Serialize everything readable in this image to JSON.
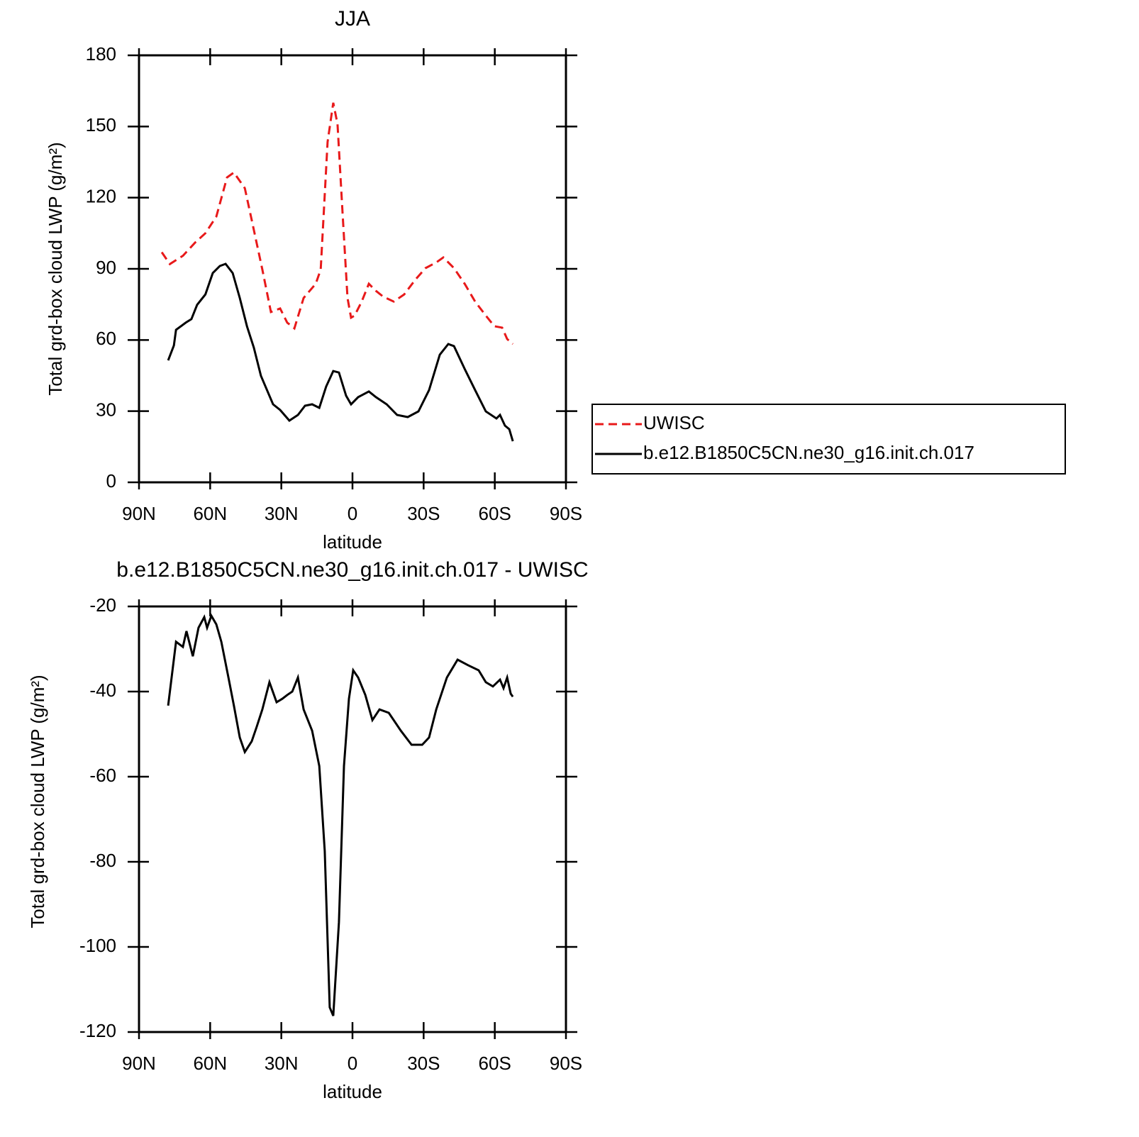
{
  "chart_data": [
    {
      "type": "line",
      "title": "JJA",
      "xlabel": "latitude",
      "ylabel": "Total grd-box cloud LWP (g/m²)",
      "xlim": [
        90,
        -90
      ],
      "xticks": [
        {
          "value": 90,
          "label": "90N"
        },
        {
          "value": 60,
          "label": "60N"
        },
        {
          "value": 30,
          "label": "30N"
        },
        0,
        {
          "value": -30,
          "label": "30S"
        },
        {
          "value": -60,
          "label": "60S"
        },
        {
          "value": -90,
          "label": "90S"
        }
      ],
      "ylim": [
        0,
        180
      ],
      "yticks": [
        0,
        30,
        60,
        90,
        120,
        150,
        180
      ],
      "legend": "right",
      "series": [
        {
          "name": "UWISC",
          "color": "#e8191a",
          "dashed": true,
          "x": [
            80.4,
            77,
            71.5,
            66.4,
            62,
            57.4,
            52.9,
            50,
            45.4,
            42.5,
            38,
            34.4,
            30.5,
            27.5,
            24.5,
            20.6,
            15.5,
            13.4,
            10.5,
            8.1,
            6.3,
            4.2,
            2.1,
            0.6,
            -0.9,
            -3.9,
            -6.9,
            -9.9,
            -12.9,
            -17.4,
            -21.8,
            -26.3,
            -30.8,
            -35.3,
            -38.3,
            -42.8,
            -47.3,
            -51.7,
            -56.2,
            -59.8,
            -63.1,
            -65.2,
            -67.6
          ],
          "values": [
            97,
            92,
            95.5,
            101,
            105,
            112,
            128.5,
            130.6,
            124,
            110.6,
            89.7,
            71.8,
            73.3,
            67.3,
            64.9,
            77.7,
            83.7,
            89.7,
            143.5,
            160,
            151,
            113.6,
            77.7,
            69.4,
            70.3,
            76.2,
            83.7,
            80.7,
            78.3,
            76.2,
            79.2,
            85.2,
            90.3,
            92.7,
            94.8,
            90.3,
            83.7,
            76.2,
            70.3,
            65.8,
            65.2,
            60.4,
            58.3
          ]
        },
        {
          "name": "b.e12.B1850C5CN.ne30_g16.init.ch.017",
          "color": "#000000",
          "dashed": false,
          "x": [
            77.7,
            75.3,
            74.4,
            70.3,
            67.9,
            65.5,
            62,
            58.9,
            55.9,
            53.5,
            50.5,
            47.5,
            44.5,
            41.6,
            38.6,
            33.5,
            30.5,
            26.6,
            23,
            20,
            17,
            14,
            11.1,
            8.1,
            5.7,
            2.7,
            0.6,
            -2.4,
            -6.9,
            -9.9,
            -14.4,
            -18.8,
            -23.3,
            -27.8,
            -32.3,
            -36.8,
            -40.4,
            -42.8,
            -47.3,
            -51.7,
            -56.2,
            -60.7,
            -62.2,
            -64.3,
            -66.1,
            -67.6
          ],
          "values": [
            51.4,
            57.7,
            64.3,
            67.3,
            68.8,
            74.8,
            79.2,
            88.2,
            91.2,
            92.1,
            88.2,
            77.7,
            65.8,
            56.8,
            44.9,
            32.9,
            30.5,
            26,
            28.4,
            32.3,
            32.9,
            31.4,
            40.4,
            46.9,
            46.3,
            36.5,
            32.9,
            35.9,
            38.3,
            35.9,
            32.9,
            28.4,
            27.5,
            29.9,
            38.9,
            53.8,
            58.3,
            57.4,
            47.8,
            38.9,
            29.9,
            26.9,
            28.4,
            23.9,
            22.4,
            17.3
          ]
        }
      ]
    },
    {
      "type": "line",
      "title": "b.e12.B1850C5CN.ne30_g16.init.ch.017 - UWISC",
      "xlabel": "latitude",
      "ylabel": "Total grd-box cloud LWP (g/m²)",
      "xlim": [
        90,
        -90
      ],
      "xticks": [
        {
          "value": 90,
          "label": "90N"
        },
        {
          "value": 60,
          "label": "60N"
        },
        {
          "value": 30,
          "label": "30N"
        },
        0,
        {
          "value": -30,
          "label": "30S"
        },
        {
          "value": -60,
          "label": "60S"
        },
        {
          "value": -90,
          "label": "90S"
        }
      ],
      "ylim": [
        -120,
        -20
      ],
      "yticks": [
        -120,
        -100,
        -80,
        -60,
        -40,
        -20
      ],
      "series": [
        {
          "color": "#000000",
          "dashed": false,
          "x": [
            77.7,
            74.4,
            71.5,
            70,
            67.3,
            64.9,
            62.5,
            61.3,
            59.5,
            57.4,
            55.3,
            52.3,
            50,
            47.5,
            45.4,
            42.5,
            40.4,
            38,
            35,
            32,
            29.6,
            27.5,
            25.4,
            23,
            20.6,
            17,
            14,
            11.7,
            9.6,
            8.1,
            5.7,
            3.6,
            1.5,
            -0.3,
            -2.4,
            -5.4,
            -8.4,
            -11.4,
            -15.3,
            -20.4,
            -24.9,
            -29.4,
            -32.3,
            -35.3,
            -39.8,
            -44.3,
            -48.7,
            -53.2,
            -56.2,
            -59.2,
            -62.2,
            -63.7,
            -65.2,
            -66.7,
            -67.6
          ],
          "values": [
            -43.3,
            -28.3,
            -29.5,
            -25.8,
            -31.7,
            -25,
            -22.5,
            -25,
            -22.2,
            -24.2,
            -28.3,
            -36.7,
            -43.3,
            -50.8,
            -54.2,
            -51.7,
            -48.3,
            -44.2,
            -37.8,
            -42.5,
            -41.7,
            -40.8,
            -40,
            -36.7,
            -44.2,
            -49.2,
            -57.5,
            -77.5,
            -114.2,
            -116.2,
            -94.2,
            -57.5,
            -41.7,
            -35,
            -36.7,
            -40.8,
            -46.7,
            -44.2,
            -45,
            -49.2,
            -52.5,
            -52.5,
            -50.8,
            -44.2,
            -36.7,
            -32.5,
            -33.8,
            -35,
            -37.8,
            -38.8,
            -37.2,
            -39.2,
            -36.7,
            -40.5,
            -41.2
          ]
        }
      ]
    }
  ]
}
